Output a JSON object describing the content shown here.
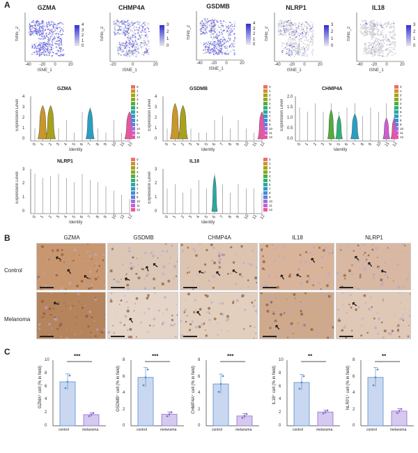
{
  "panels": {
    "A": "A",
    "B": "B",
    "C": "C"
  },
  "tsne": {
    "xlabel": "tSNE_1",
    "ylabel": "tSNE_2",
    "plots": [
      {
        "gene": "GZMA",
        "ticks": [
          "4",
          "3",
          "2",
          "1",
          "0"
        ],
        "xticks": [
          "-40",
          "-20",
          "0",
          "20"
        ]
      },
      {
        "gene": "CHMP4A",
        "ticks": [
          "3",
          "2",
          "1",
          "0"
        ],
        "xticks": [
          "-20",
          "0",
          "20"
        ]
      },
      {
        "gene": "GSDMB",
        "ticks": [
          "4",
          "3",
          "2",
          "1",
          "0"
        ],
        "xticks": [
          "-40",
          "-20",
          "0",
          "20"
        ]
      },
      {
        "gene": "NLRP1",
        "ticks": [
          "3",
          "2",
          "1",
          "0"
        ],
        "xticks": [
          "-40",
          "-20",
          "0",
          "20"
        ]
      },
      {
        "gene": "IL18",
        "ticks": [
          "3",
          "2",
          "1",
          "0"
        ],
        "xticks": [
          "-40",
          "-20",
          "0",
          "20"
        ]
      }
    ]
  },
  "violin": {
    "ylabel": "Expression Level",
    "xlabel": "Identity",
    "identities": [
      "0",
      "1",
      "2",
      "3",
      "4",
      "5",
      "6",
      "7",
      "8",
      "9",
      "10",
      "11",
      "12"
    ],
    "legend": [
      "0",
      "1",
      "2",
      "3",
      "4",
      "5",
      "6",
      "7",
      "8",
      "9",
      "10",
      "11",
      "12"
    ],
    "colors": [
      "#f26b6b",
      "#c9962b",
      "#a8a11e",
      "#8fa81f",
      "#4fae3a",
      "#2fb07a",
      "#2aa9a0",
      "#2a9fc2",
      "#3f8ed8",
      "#6a7be0",
      "#9c6fe0",
      "#cc5fcf",
      "#e8569e"
    ],
    "plots": [
      {
        "gene": "GZMA",
        "yticks": [
          "4",
          "3",
          "2",
          "1",
          "0"
        ]
      },
      {
        "gene": "GSDMB",
        "yticks": [
          "4",
          "3",
          "2",
          "1",
          "0"
        ]
      },
      {
        "gene": "CHMP4A",
        "yticks": [
          "2.0",
          "1.5",
          "1.0",
          "0.5",
          "0.0"
        ]
      },
      {
        "gene": "NLRP1",
        "yticks": [
          "3",
          "2",
          "1",
          "0"
        ]
      },
      {
        "gene": "IL18",
        "yticks": [
          "3",
          "2",
          "1",
          "0"
        ]
      }
    ]
  },
  "ihc": {
    "columns": [
      "GZMA",
      "GSDMB",
      "CHMP4A",
      "IL18",
      "NLRP1"
    ],
    "rows": [
      "Control",
      "Melanoma"
    ]
  },
  "chart_data": [
    {
      "type": "bar",
      "categories": [
        "control",
        "melanoma"
      ],
      "values": [
        6.7,
        1.7
      ],
      "ylabel": "GZMA⁺ cell (% in field)",
      "ylim": [
        0,
        10
      ],
      "yticks": [
        "10",
        "8",
        "6",
        "4",
        "2",
        "0"
      ],
      "significance": "***"
    },
    {
      "type": "bar",
      "categories": [
        "control",
        "melanoma"
      ],
      "values": [
        5.9,
        1.4
      ],
      "ylabel": "GSDMB⁺ cell (% in field)",
      "ylim": [
        0,
        8
      ],
      "yticks": [
        "8",
        "6",
        "4",
        "2",
        "0"
      ],
      "significance": "***"
    },
    {
      "type": "bar",
      "categories": [
        "control",
        "melanoma"
      ],
      "values": [
        5.1,
        1.2
      ],
      "ylabel": "CHMP4A⁺ cell (% in field)",
      "ylim": [
        0,
        8
      ],
      "yticks": [
        "8",
        "6",
        "4",
        "2",
        "0"
      ],
      "significance": "***"
    },
    {
      "type": "bar",
      "categories": [
        "control",
        "melanoma"
      ],
      "values": [
        6.6,
        2.1
      ],
      "ylabel": "IL18⁺ cell (% in field)",
      "ylim": [
        0,
        10
      ],
      "yticks": [
        "10",
        "8",
        "6",
        "4",
        "2",
        "0"
      ],
      "significance": "**"
    },
    {
      "type": "bar",
      "categories": [
        "control",
        "melanoma"
      ],
      "values": [
        5.9,
        1.8
      ],
      "ylabel": "NLRP1⁺ cell (% in field)",
      "ylim": [
        0,
        8
      ],
      "yticks": [
        "8",
        "6",
        "4",
        "2",
        "0"
      ],
      "significance": "**"
    }
  ]
}
